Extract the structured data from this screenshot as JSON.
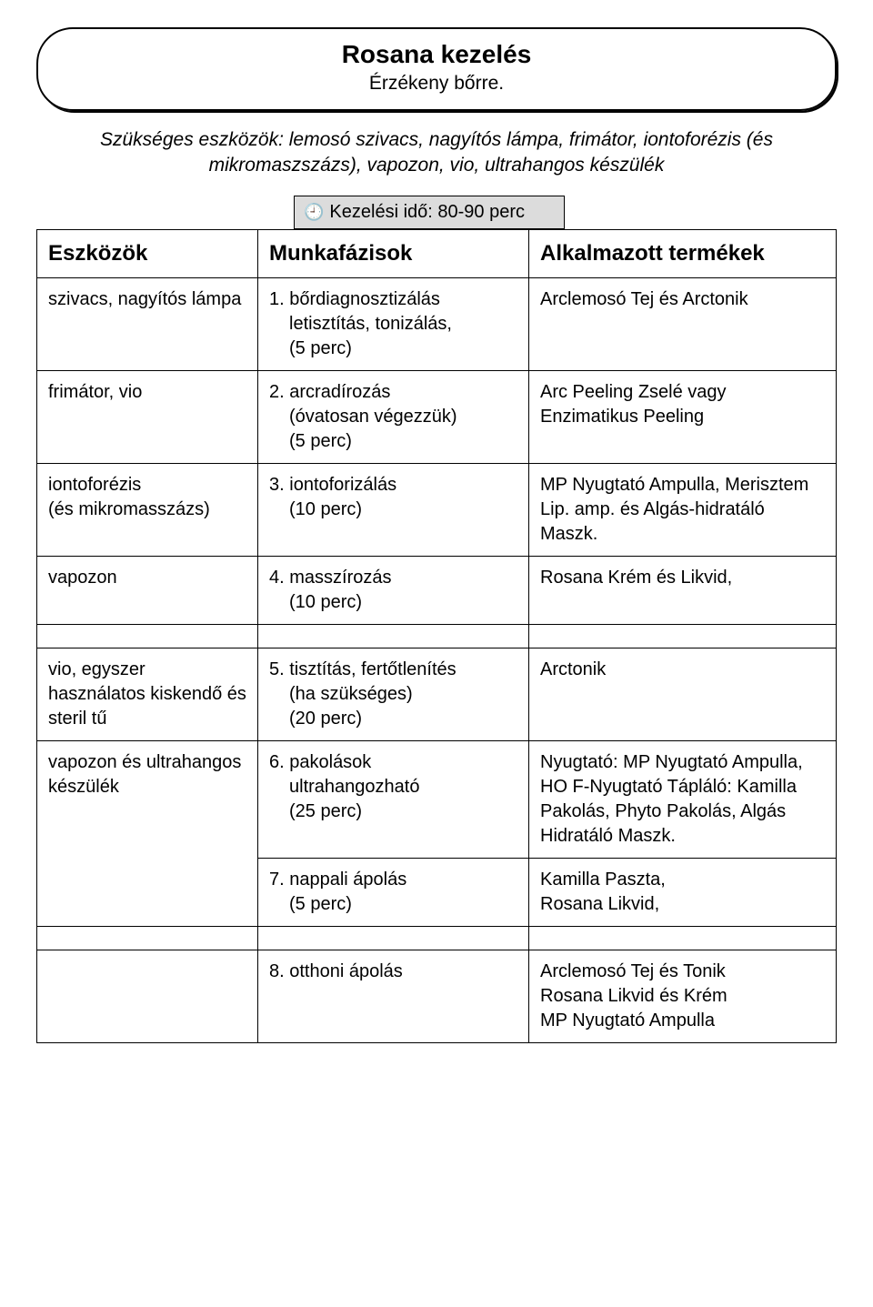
{
  "header": {
    "title": "Rosana kezelés",
    "subtitle": "Érzékeny bőrre."
  },
  "intro": "Szükséges eszközök: lemosó szivacs, nagyítós lámpa, frimátor, iontoforézis (és mikromaszszázs), vapozon, vio, ultrahangos készülék",
  "timing": "Kezelési idő: 80-90 perc",
  "columns": {
    "c1": "Eszközök",
    "c2": "Munkafázisok",
    "c3": "Alkalmazott termékek"
  },
  "rows": [
    {
      "tool": "szivacs, nagyítós lámpa",
      "phase_num": "1.",
      "phase_name": "bőrdiagnosztizálás",
      "phase_sub": "letisztítás, tonizálás,\n(5 perc)",
      "product": "Arclemosó Tej és Arctonik"
    },
    {
      "tool": "frimátor, vio",
      "phase_num": "2.",
      "phase_name": "arcradírozás",
      "phase_sub": "(óvatosan végezzük)\n(5 perc)",
      "product": "Arc Peeling Zselé vagy Enzimatikus Peeling"
    },
    {
      "tool": "iontoforézis\n(és mikromasszázs)",
      "phase_num": "3.",
      "phase_name": "iontoforizálás",
      "phase_sub": "(10 perc)",
      "product": "MP Nyugtató Ampulla, Merisztem Lip. amp. és Algás-hidratáló Maszk."
    },
    {
      "tool": "vapozon",
      "phase_num": "4.",
      "phase_name": "masszírozás",
      "phase_sub": "(10 perc)",
      "product": "Rosana Krém és Likvid,"
    },
    {
      "tool": "vio, egyszer használatos kiskendő és steril tű",
      "phase_num": "5.",
      "phase_name": "tisztítás, fertőtlenítés",
      "phase_sub": "(ha szükséges)\n(20 perc)",
      "product": "Arctonik"
    },
    {
      "tool": "vapozon és ultrahangos készülék",
      "phase_num": "6.",
      "phase_name": "pakolások",
      "phase_sub": "ultrahangozható\n(25 perc)",
      "product": "Nyugtató: MP Nyugtató Ampulla, HO F-Nyugtató Tápláló: Kamilla Pakolás, Phyto Pakolás, Algás Hidratáló Maszk."
    },
    {
      "tool": "",
      "phase_num": "7.",
      "phase_name": "nappali ápolás",
      "phase_sub": "(5 perc)",
      "product": "Kamilla Paszta,\nRosana Likvid,"
    },
    {
      "tool": "",
      "phase_num": "8.",
      "phase_name": "otthoni ápolás",
      "phase_sub": "",
      "product": "Arclemosó Tej és Tonik\nRosana Likvid és Krém\nMP Nyugtató Ampulla"
    }
  ]
}
